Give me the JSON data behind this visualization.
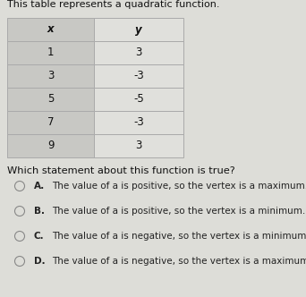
{
  "title": "This table represents a quadratic function.",
  "table_headers": [
    "x",
    "y"
  ],
  "table_data": [
    [
      1,
      3
    ],
    [
      3,
      -3
    ],
    [
      5,
      -5
    ],
    [
      7,
      -3
    ],
    [
      9,
      3
    ]
  ],
  "question": "Which statement about this function is true?",
  "options": [
    [
      "A.",
      "The value of a is positive, so the vertex is a maximum."
    ],
    [
      "B.",
      "The value of a is positive, so the vertex is a minimum."
    ],
    [
      "C.",
      "The value of a is negative, so the vertex is a minimum."
    ],
    [
      "D.",
      "The value of a is negative, so the vertex is a maximum."
    ]
  ],
  "bg_color": "#ddddd8",
  "table_bg_left": "#c8c8c4",
  "table_bg_right": "#e0e0dc",
  "text_color": "#111111",
  "option_color": "#222222",
  "circle_color": "#888888",
  "title_fontsize": 8.0,
  "question_fontsize": 8.2,
  "option_fontsize": 7.5,
  "table_fontsize": 8.5
}
